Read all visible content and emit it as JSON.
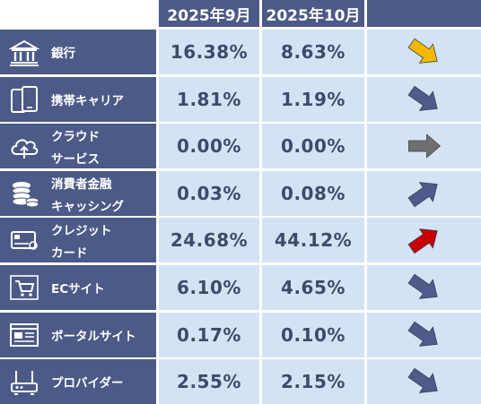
{
  "header": {
    "corner": "",
    "col1": "2025年9月",
    "col2": "2025年10月",
    "col3": ""
  },
  "colors": {
    "header_bg": "#4b5a86",
    "cell_bg": "#d3e3f3",
    "text_dark": "#3d4b6b",
    "arrow_down": "#4e5b8b",
    "arrow_up": "#4e5b8b",
    "arrow_flat": "#6f6f6f",
    "arrow_yellow": "#f5b800",
    "arrow_red": "#c80000"
  },
  "rows": [
    {
      "lines": [
        "銀行"
      ],
      "icon": "bank-icon",
      "sep": "16.38%",
      "oct": "8.63%",
      "trend": "down",
      "trend_color": "#f5b800"
    },
    {
      "lines": [
        "携帯キャリア"
      ],
      "icon": "smartphone-icon",
      "sep": "1.81%",
      "oct": "1.19%",
      "trend": "down",
      "trend_color": "#4e5b8b"
    },
    {
      "lines": [
        "クラウド",
        "サービス"
      ],
      "icon": "cloud-icon",
      "sep": "0.00%",
      "oct": "0.00%",
      "trend": "flat",
      "trend_color": "#6f6f6f"
    },
    {
      "lines": [
        "消費者金融",
        "キャッシング"
      ],
      "icon": "coins-icon",
      "sep": "0.03%",
      "oct": "0.08%",
      "trend": "up",
      "trend_color": "#4e5b8b"
    },
    {
      "lines": [
        "クレジット",
        "カード"
      ],
      "icon": "credit-card-icon",
      "sep": "24.68%",
      "oct": "44.12%",
      "trend": "up",
      "trend_color": "#c80000"
    },
    {
      "lines": [
        "ECサイト"
      ],
      "icon": "shopping-cart-icon",
      "sep": "6.10%",
      "oct": "4.65%",
      "trend": "down",
      "trend_color": "#4e5b8b"
    },
    {
      "lines": [
        "ポータルサイト"
      ],
      "icon": "web-portal-icon",
      "sep": "0.17%",
      "oct": "0.10%",
      "trend": "down",
      "trend_color": "#4e5b8b"
    },
    {
      "lines": [
        "プロバイダー"
      ],
      "icon": "router-icon",
      "sep": "2.55%",
      "oct": "2.15%",
      "trend": "down",
      "trend_color": "#4e5b8b"
    }
  ],
  "chart_data": {
    "type": "table",
    "columns": [
      "2025年9月",
      "2025年10月"
    ],
    "categories": [
      "銀行",
      "携帯キャリア",
      "クラウドサービス",
      "消費者金融キャッシング",
      "クレジットカード",
      "ECサイト",
      "ポータルサイト",
      "プロバイダー"
    ],
    "series": [
      {
        "name": "2025年9月",
        "values": [
          16.38,
          1.81,
          0.0,
          0.03,
          24.68,
          6.1,
          0.17,
          2.55
        ]
      },
      {
        "name": "2025年10月",
        "values": [
          8.63,
          1.19,
          0.0,
          0.08,
          44.12,
          4.65,
          0.1,
          2.15
        ]
      }
    ],
    "unit": "%",
    "trends": [
      "down",
      "down",
      "flat",
      "up",
      "up",
      "down",
      "down",
      "down"
    ]
  }
}
